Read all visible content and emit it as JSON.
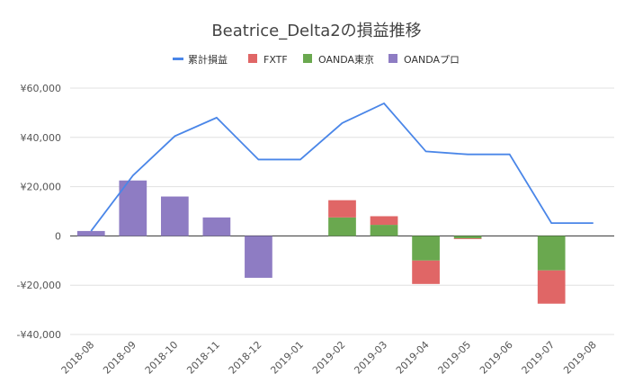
{
  "chart_data": {
    "type": "bar",
    "title": "Beatrice_Delta2の損益推移",
    "xlabel": "",
    "ylabel": "",
    "ylim": [
      -40000,
      60000
    ],
    "yticks": [
      -40000,
      -20000,
      0,
      20000,
      40000,
      60000
    ],
    "ytick_labels": [
      "-¥40,000",
      "-¥20,000",
      "0",
      "¥20,000",
      "¥40,000",
      "¥60,000"
    ],
    "legend_position": "top",
    "grid": true,
    "stacked": true,
    "categories": [
      "2018-08",
      "2018-09",
      "2018-10",
      "2018-11",
      "2018-12",
      "2019-01",
      "2019-02",
      "2019-03",
      "2019-04",
      "2019-05",
      "2019-06",
      "2019-07",
      "2019-08"
    ],
    "series": [
      {
        "name": "累計損益",
        "kind": "line",
        "color": "#4a86e8",
        "values": [
          2000,
          24500,
          40500,
          48000,
          31000,
          31000,
          45800,
          53800,
          34300,
          33100,
          33100,
          5200,
          5200
        ]
      },
      {
        "name": "FXTF",
        "kind": "bar",
        "color": "#e06666",
        "values": [
          0,
          0,
          0,
          0,
          0,
          0,
          7000,
          3500,
          -9500,
          -300,
          0,
          -13500,
          0
        ]
      },
      {
        "name": "OANDA東京",
        "kind": "bar",
        "color": "#6aa84f",
        "values": [
          0,
          0,
          0,
          0,
          0,
          0,
          7500,
          4500,
          -10000,
          -1000,
          0,
          -14000,
          0
        ]
      },
      {
        "name": "OANDAプロ",
        "kind": "bar",
        "color": "#8e7cc3",
        "values": [
          2000,
          22500,
          16000,
          7500,
          -17000,
          0,
          0,
          0,
          0,
          0,
          0,
          0,
          0
        ]
      }
    ]
  }
}
